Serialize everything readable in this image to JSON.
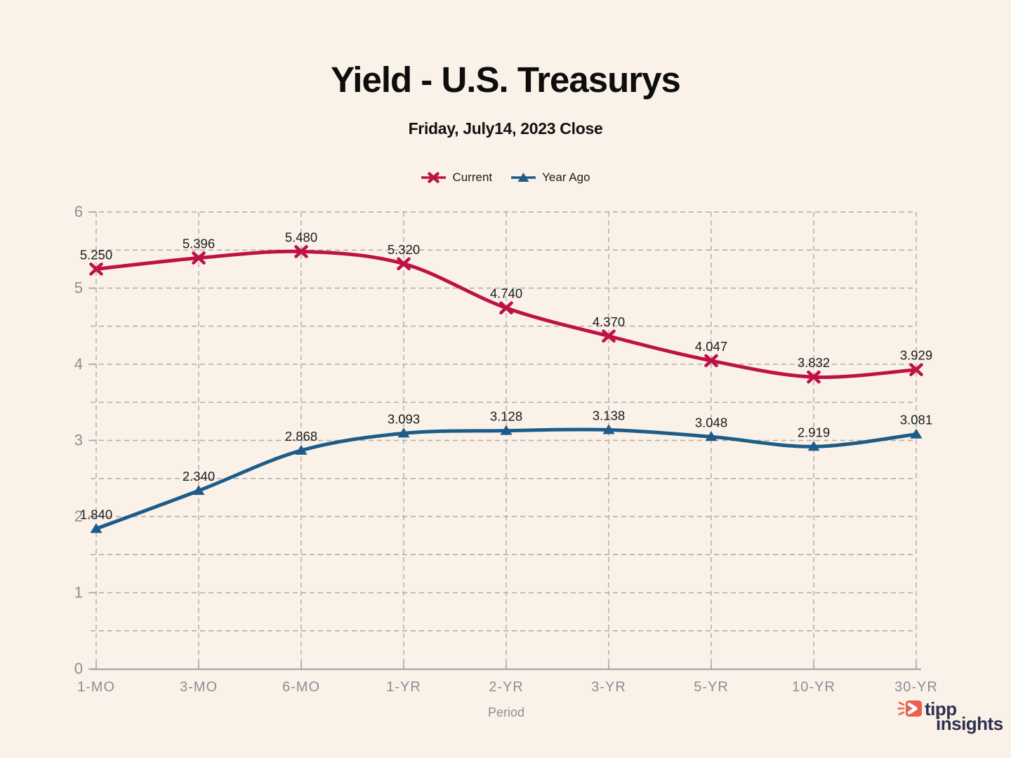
{
  "header": {
    "title": "Yield - U.S. Treasurys",
    "subtitle": "Friday, July14, 2023 Close"
  },
  "legend": [
    {
      "label": "Current",
      "color": "#BE1245",
      "marker": "x"
    },
    {
      "label": "Year Ago",
      "color": "#1D5C88",
      "marker": "triangle"
    }
  ],
  "chart_data": {
    "type": "line",
    "categories": [
      "1-MO",
      "3-MO",
      "6-MO",
      "1-YR",
      "2-YR",
      "3-YR",
      "5-YR",
      "10-YR",
      "30-YR"
    ],
    "series": [
      {
        "name": "Current",
        "color": "#BE1245",
        "marker": "x",
        "values": [
          5.25,
          5.396,
          5.48,
          5.32,
          4.74,
          4.37,
          4.047,
          3.832,
          3.929
        ]
      },
      {
        "name": "Year Ago",
        "color": "#1D5C88",
        "marker": "triangle",
        "values": [
          1.84,
          2.34,
          2.868,
          3.093,
          3.128,
          3.138,
          3.048,
          2.919,
          3.081
        ]
      }
    ],
    "title": "Yield - U.S. Treasurys",
    "subtitle": "Friday, July14, 2023 Close",
    "xlabel": "Period",
    "ylabel": "",
    "ylim": [
      0,
      6
    ],
    "y_ticks": [
      0,
      1,
      2,
      3,
      4,
      5,
      6
    ],
    "grid_step": 0.5,
    "grid": true,
    "legend_position": "top",
    "value_label_decimals": 3
  },
  "style": {
    "background": "#FAF1E8",
    "grid_color": "#AFACA7",
    "axis_color": "#A6A4A9",
    "axis_label_color": "#8E8D95",
    "data_label_color": "#1A1A1A"
  },
  "logo": {
    "line1": "tipp",
    "line2": "insights",
    "text_color": "#2E3152",
    "icon_color": "#E96050"
  }
}
